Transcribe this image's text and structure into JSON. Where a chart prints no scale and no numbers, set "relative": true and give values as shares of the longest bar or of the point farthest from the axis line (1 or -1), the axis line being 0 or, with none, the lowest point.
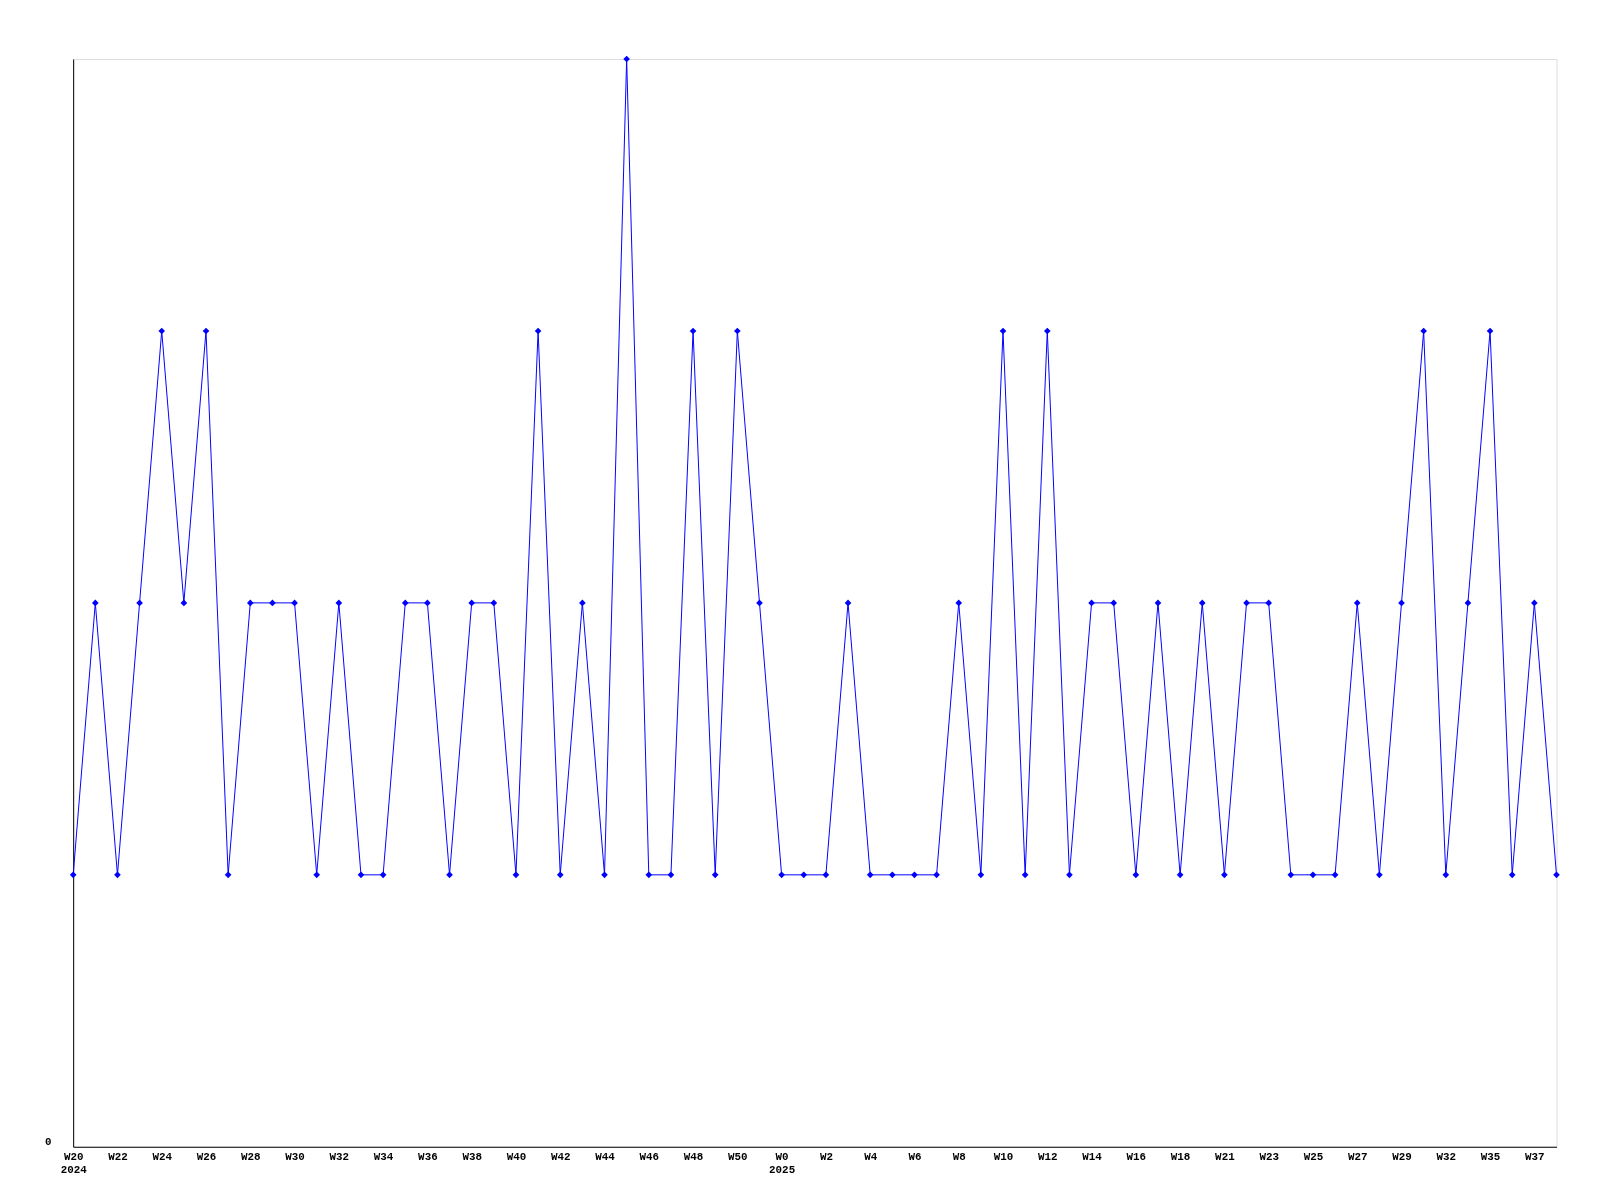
{
  "chart_data": {
    "type": "line",
    "relative": true,
    "color": "#0000ff",
    "marker": "diamond",
    "line_style": "solid",
    "grid": false,
    "annotations": [
      "0"
    ],
    "categories": [
      "W20\n2024",
      null,
      "W22",
      null,
      "W24",
      null,
      "W26",
      null,
      "W28",
      null,
      "W30",
      null,
      "W32",
      null,
      "W34",
      null,
      "W36",
      null,
      "W38",
      null,
      "W40",
      null,
      "W42",
      null,
      "W44",
      null,
      "W46",
      null,
      "W48",
      null,
      "W50",
      null,
      "W0\n2025",
      null,
      "W2",
      null,
      "W4",
      null,
      "W6",
      null,
      "W8",
      null,
      "W10",
      null,
      "W12",
      null,
      "W14",
      null,
      "W16",
      null,
      "W18",
      null,
      "W21",
      null,
      "W23",
      null,
      "W25",
      null,
      "W27",
      null,
      "W29",
      null,
      "W32",
      null,
      "W35",
      null,
      "W37",
      null
    ],
    "values": [
      0.25,
      0.5,
      0.25,
      0.5,
      0.75,
      0.5,
      0.75,
      0.25,
      0.5,
      0.5,
      0.5,
      0.25,
      0.5,
      0.25,
      0.25,
      0.5,
      0.5,
      0.25,
      0.5,
      0.5,
      0.25,
      0.75,
      0.25,
      0.5,
      0.25,
      1,
      0.25,
      0.25,
      0.75,
      0.25,
      0.75,
      0.5,
      0.25,
      0.25,
      0.25,
      0.5,
      0.25,
      0.25,
      0.25,
      0.25,
      0.5,
      0.25,
      0.75,
      0.25,
      0.75,
      0.25,
      0.5,
      0.5,
      0.25,
      0.5,
      0.25,
      0.5,
      0.25,
      0.5,
      0.5,
      0.25,
      0.25,
      0.25,
      0.5,
      0.25,
      0.5,
      0.75,
      0.25,
      0.5,
      0.75,
      0.25,
      0.5,
      0.25
    ]
  }
}
